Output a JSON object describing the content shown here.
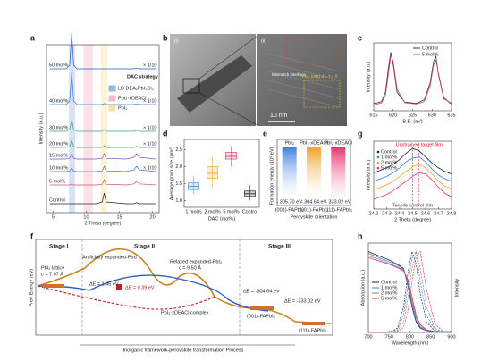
{
  "panels": {
    "a": {
      "label": "a",
      "strategy": "DAC strategy",
      "xlabel": "2 Theta (degree)",
      "ylabel": "Intensity (a.u.)",
      "scale_note": "× 1/10",
      "xlim": [
        4,
        21
      ],
      "xticks": [
        5,
        10,
        15,
        20
      ],
      "bands": [
        {
          "name": "LD DEA₂PbI₂Cl₂",
          "color": "#5b86d6",
          "range": [
            7.4,
            8.3
          ]
        },
        {
          "name": "PbI₂·xDEACl",
          "color": "#f08aa0",
          "range": [
            9.6,
            11
          ]
        },
        {
          "name": "PbI₂",
          "color": "#f2cf6a",
          "range": [
            12.2,
            13.2
          ]
        }
      ],
      "x": [
        4.5,
        7,
        7.5,
        7.8,
        8.1,
        8.6,
        11.5,
        12.4,
        12.7,
        13,
        16,
        17.2,
        17.6,
        18,
        20.5
      ],
      "series": [
        {
          "name": "50 mol%",
          "color": "#2b5fb4",
          "scaled": true,
          "values": [
            0,
            0,
            1,
            10,
            1,
            0,
            0,
            0,
            0,
            0,
            0,
            0,
            0.2,
            0,
            0
          ]
        },
        {
          "name": "40 mol%",
          "color": "#3a78cc",
          "scaled": true,
          "values": [
            0,
            0,
            1,
            9,
            1,
            0,
            0,
            0,
            0.3,
            0,
            0,
            0,
            0.2,
            0,
            0
          ]
        },
        {
          "name": "30 mol%",
          "color": "#3aa0a0",
          "scaled": true,
          "values": [
            0,
            0,
            0.5,
            3,
            0.5,
            0,
            0,
            0,
            0.5,
            0,
            0,
            0,
            0.3,
            0,
            0
          ]
        },
        {
          "name": "20 mol%",
          "color": "#3aa060",
          "scaled": true,
          "values": [
            0,
            0,
            0.3,
            2,
            0.3,
            0,
            0,
            0,
            0.5,
            0,
            0,
            0,
            0.3,
            0,
            0
          ]
        },
        {
          "name": "15 mol%",
          "color": "#7a5cc0",
          "scaled": false,
          "values": [
            0,
            0,
            0.2,
            1.5,
            0.2,
            0,
            0,
            0.2,
            1.5,
            0.2,
            0,
            0.5,
            1.5,
            0.5,
            0
          ]
        },
        {
          "name": "10 mol%",
          "color": "#4a70c8",
          "scaled": true,
          "values": [
            0,
            0,
            0.1,
            1,
            0.1,
            0,
            0,
            0.2,
            1.5,
            0.2,
            0,
            0.5,
            1.5,
            0.5,
            0
          ]
        },
        {
          "name": "5 mol%",
          "color": "#d0507a",
          "scaled": false,
          "values": [
            0,
            0,
            0,
            0.3,
            0,
            0,
            0,
            0.2,
            1.5,
            0.2,
            0,
            0.3,
            1,
            0.3,
            0
          ]
        },
        {
          "name": "Control",
          "color": "#222222",
          "scaled": false,
          "values": [
            0,
            0,
            0,
            0,
            0,
            0,
            0,
            0.5,
            3,
            0.5,
            0,
            0,
            0.3,
            0,
            0
          ]
        }
      ]
    },
    "b": {
      "label": "b",
      "image1": "(i)",
      "image2": "(ii)",
      "annotation": "Mismatch interface",
      "lattice": "PbI₂ (001) d = 7.4 Å",
      "scale_bar": "10 nm"
    },
    "c": {
      "label": "c",
      "xlabel": "B.E. (eV)",
      "ylabel": "Intensity (a.u.)",
      "xlim": [
        615,
        635
      ],
      "xticks": [
        615,
        620,
        625,
        630,
        635
      ],
      "ylim": [
        0,
        1.1
      ],
      "x": [
        615,
        616,
        617,
        618,
        618.8,
        619.4,
        620,
        621,
        623,
        626,
        628,
        629.5,
        630.4,
        631,
        631.6,
        633,
        635
      ],
      "series": [
        {
          "name": "Control",
          "color": "#333333",
          "values": [
            0.12,
            0.13,
            0.15,
            0.3,
            0.7,
            0.95,
            0.75,
            0.3,
            0.14,
            0.12,
            0.18,
            0.45,
            0.8,
            0.88,
            0.6,
            0.2,
            0.12
          ]
        },
        {
          "name": "5 mol%",
          "color": "#d8407a",
          "values": [
            0.1,
            0.11,
            0.13,
            0.25,
            0.6,
            0.9,
            0.8,
            0.35,
            0.13,
            0.11,
            0.15,
            0.4,
            0.75,
            0.82,
            0.62,
            0.22,
            0.1
          ]
        }
      ]
    },
    "d": {
      "label": "d",
      "xlabel": "DAC (mol%)",
      "ylabel": "Average grain size (μm²)",
      "ylim": [
        0.8,
        2.8
      ],
      "yticks": [
        {
          "value": 1,
          "label": "1.0"
        },
        1.5,
        {
          "value": 2,
          "label": "2.0"
        },
        2.5
      ],
      "categories": [
        "1 mol%",
        "2 mol%",
        "5 mol%",
        "Control"
      ],
      "boxes": [
        {
          "color": "#4a9ae0",
          "min": 1.2,
          "q1": 1.32,
          "median": 1.42,
          "q3": 1.52,
          "max": 1.7
        },
        {
          "color": "#f0a830",
          "min": 1.4,
          "q1": 1.65,
          "median": 1.8,
          "q3": 2.0,
          "max": 2.3
        },
        {
          "color": "#e0407a",
          "min": 2.0,
          "q1": 2.22,
          "median": 2.3,
          "q3": 2.42,
          "max": 2.6
        },
        {
          "color": "#222222",
          "min": 1.0,
          "q1": 1.12,
          "median": 1.2,
          "q3": 1.28,
          "max": 1.45
        }
      ]
    },
    "e": {
      "label": "e",
      "xlabel": "Perovskite orientation",
      "ylabel": "Formation energy (10⁵ eV)",
      "ylim": [
        -340,
        0
      ],
      "groups": [
        "PbI₂",
        "PbI₂·xDEACl",
        "PbI₂·xDEACl"
      ],
      "categories": [
        "(001)-FAPbI₃",
        "(001)-FAPbI₃",
        "(111)-FAPbI₃"
      ],
      "colors": [
        "#3a7ee0",
        "#f0a020",
        "#e8306a"
      ],
      "values": [
        -305.7,
        -304.64,
        -333.02
      ],
      "value_labels": [
        "- 305.70 eV",
        "- 304.64 eV",
        "- 333.02 eV"
      ]
    },
    "g": {
      "label": "g",
      "xlabel": "2 Theta (degree)",
      "ylabel": "Intensity (a.u.)",
      "xlim": [
        24.2,
        24.8
      ],
      "xticks": [
        24.2,
        24.3,
        24.4,
        24.5,
        24.6,
        24.7,
        24.8
      ],
      "ylim": [
        0,
        5.6
      ],
      "x": [
        24.2,
        24.25,
        24.3,
        24.35,
        24.4,
        24.45,
        24.5,
        24.55,
        24.6,
        24.65,
        24.7,
        24.75,
        24.8
      ],
      "series": [
        {
          "name": "Control",
          "color": "#222222",
          "values": [
            3.0,
            3.2,
            3.4,
            3.7,
            4.1,
            4.6,
            5.0,
            4.8,
            4.3,
            3.8,
            3.4,
            3.1,
            2.9
          ]
        },
        {
          "name": "1 mol%",
          "color": "#3a7ee0",
          "values": [
            2.3,
            2.5,
            2.7,
            3.0,
            3.4,
            3.9,
            4.2,
            4.3,
            3.9,
            3.3,
            2.8,
            2.5,
            2.3
          ]
        },
        {
          "name": "2 mol%",
          "color": "#f0a020",
          "values": [
            1.6,
            1.8,
            2.0,
            2.3,
            2.7,
            3.1,
            3.5,
            3.7,
            3.4,
            2.9,
            2.3,
            1.9,
            1.7
          ]
        },
        {
          "name": "5 mol%",
          "color": "#e8306a",
          "values": [
            0.8,
            1.0,
            1.2,
            1.5,
            1.9,
            2.3,
            2.7,
            3.0,
            2.9,
            2.4,
            1.8,
            1.3,
            1.0
          ]
        }
      ],
      "annotations": [
        {
          "text": "Unstrained target film",
          "x": 24.55,
          "color": "#e02030"
        },
        {
          "text": "Tensile control film",
          "x": 24.5,
          "color": "#444444"
        }
      ]
    },
    "f": {
      "label": "f",
      "ylabel": "Free Energy (eV)",
      "xlabel": "Inorganic framework-perovskite transformation Process",
      "stages": [
        "Stage I",
        "Stage II",
        "Stage III"
      ],
      "lattice": "PbI₂ lattice",
      "lattice_c": "c = 7.07 Å",
      "expanded": "Artificially expanded-PbI₂",
      "relaxed": "Relaxed expanded-PbI₂",
      "relaxed_c": "c = 9.50 Å",
      "de1": "ΔE = 1.45 eV",
      "de2": "ΔE = 0.39 eV",
      "de3": "ΔE = -304.64 eV",
      "de4": "ΔE = -333.02 eV",
      "complex": "PbI₂·xDEACl complex",
      "p001": "(001)-FAPbI₃",
      "p111": "(111)-FAPbI₃"
    },
    "h": {
      "label": "h",
      "xlabel": "Wavelength (nm)",
      "ylabel": "Absorption (a.u.)",
      "y2label": "Intensity",
      "xlim": [
        700,
        900
      ],
      "xticks": [
        700,
        750,
        800,
        850,
        900
      ],
      "ylim": [
        0,
        1.05
      ],
      "x": [
        700,
        725,
        750,
        770,
        785,
        795,
        805,
        815,
        825,
        840,
        860,
        880,
        900
      ],
      "series": [
        {
          "name": "Control",
          "color": "#222222",
          "values": [
            0.95,
            0.9,
            0.85,
            0.8,
            0.75,
            0.55,
            0.3,
            0.12,
            0.05,
            0.02,
            0.01,
            0.01,
            0.01
          ],
          "pl": [
            0,
            0,
            0,
            0.05,
            0.3,
            0.7,
            0.95,
            0.8,
            0.45,
            0.12,
            0.02,
            0,
            0
          ]
        },
        {
          "name": "1 mol%",
          "color": "#3a7ee0",
          "values": [
            0.93,
            0.88,
            0.83,
            0.79,
            0.74,
            0.57,
            0.33,
            0.14,
            0.06,
            0.02,
            0.01,
            0.01,
            0.01
          ],
          "pl": [
            0,
            0,
            0,
            0.03,
            0.2,
            0.55,
            0.88,
            0.95,
            0.6,
            0.2,
            0.03,
            0,
            0
          ]
        },
        {
          "name": "2 mol%",
          "color": "#888888",
          "values": [
            0.9,
            0.86,
            0.81,
            0.77,
            0.73,
            0.6,
            0.37,
            0.17,
            0.07,
            0.03,
            0.01,
            0.01,
            0.01
          ],
          "pl": [
            0,
            0,
            0,
            0.02,
            0.12,
            0.4,
            0.75,
            0.95,
            0.75,
            0.3,
            0.05,
            0,
            0
          ]
        },
        {
          "name": "5 mol%",
          "color": "#e8306a",
          "values": [
            0.88,
            0.84,
            0.8,
            0.76,
            0.72,
            0.62,
            0.42,
            0.2,
            0.09,
            0.03,
            0.01,
            0.01,
            0.01
          ],
          "pl": [
            0,
            0,
            0,
            0.01,
            0.06,
            0.25,
            0.6,
            0.9,
            0.95,
            0.5,
            0.1,
            0.01,
            0
          ]
        }
      ]
    }
  }
}
